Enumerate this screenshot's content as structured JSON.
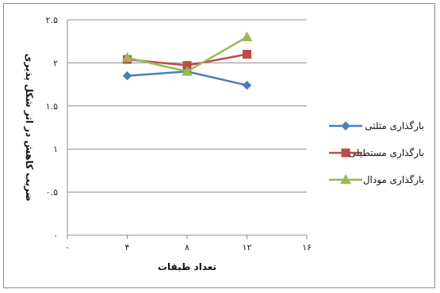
{
  "chart_data": {
    "type": "line",
    "title": "",
    "xlabel": "تعداد طبقات",
    "ylabel": "ضریب کاهش در اثر شکل پذیری",
    "x_ticks": [
      "۰",
      "۴",
      "۸",
      "۱۲",
      "۱۶"
    ],
    "y_ticks": [
      "۰",
      "۰.۵",
      "۱",
      "۱.۵",
      "۲",
      "۲.۵"
    ],
    "xlim": [
      0,
      16
    ],
    "ylim": [
      0,
      2.5
    ],
    "grid": "horizontal",
    "legend_position": "right",
    "x": [
      4,
      8,
      12
    ],
    "series": [
      {
        "name": "بارگذاری مثلثی",
        "values": [
          1.85,
          1.9,
          1.74
        ],
        "color": "#4a7ebb",
        "marker": "diamond"
      },
      {
        "name": "بارگذاری مستطیلی",
        "values": [
          2.04,
          1.97,
          2.1
        ],
        "color": "#be4b48",
        "marker": "square"
      },
      {
        "name": "بارگذاری مودال",
        "values": [
          2.06,
          1.9,
          2.3
        ],
        "color": "#98b954",
        "marker": "triangle"
      }
    ]
  }
}
